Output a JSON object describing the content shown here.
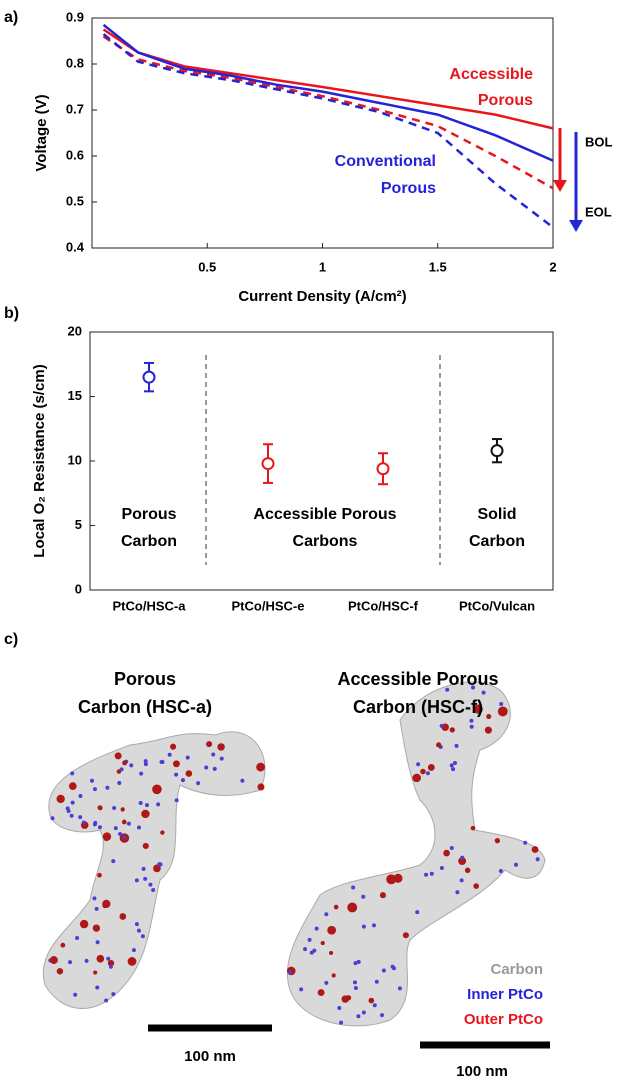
{
  "chart_data": [
    {
      "type": "line",
      "panel_label": "a)",
      "y_label": "Voltage (V)",
      "x_label": "Current Density (A/cm²)",
      "x": [
        0.05,
        0.2,
        0.4,
        0.6,
        0.8,
        1.0,
        1.25,
        1.5,
        1.75,
        2.0
      ],
      "series": [
        {
          "color": "#e8161b",
          "dash": false,
          "values": [
            0.875,
            0.825,
            0.795,
            0.78,
            0.765,
            0.75,
            0.73,
            0.71,
            0.69,
            0.66
          ]
        },
        {
          "color": "#e8161b",
          "dash": true,
          "values": [
            0.86,
            0.81,
            0.785,
            0.77,
            0.75,
            0.73,
            0.7,
            0.665,
            0.6,
            0.53
          ]
        },
        {
          "color": "#2323d8",
          "dash": false,
          "values": [
            0.885,
            0.825,
            0.79,
            0.775,
            0.755,
            0.74,
            0.715,
            0.69,
            0.645,
            0.59
          ]
        },
        {
          "color": "#2323d8",
          "dash": true,
          "values": [
            0.865,
            0.805,
            0.78,
            0.765,
            0.745,
            0.725,
            0.695,
            0.65,
            0.54,
            0.445
          ]
        }
      ],
      "xlim": [
        0,
        2
      ],
      "ylim": [
        0.4,
        0.9
      ],
      "xticks": [
        0.5,
        1,
        1.5,
        2
      ],
      "yticks": [
        0.4,
        0.5,
        0.6,
        0.7,
        0.8,
        0.9
      ],
      "annotations": {
        "accessible": [
          "Accessible",
          "Porous"
        ],
        "conventional": [
          "Conventional",
          "Porous"
        ],
        "bol": "BOL",
        "eol": "EOL"
      }
    },
    {
      "type": "errorbar",
      "panel_label": "b)",
      "y_label": "Local O₂ Resistance (s/cm)",
      "categories": [
        "PtCo/HSC-a",
        "PtCo/HSC-e",
        "PtCo/HSC-f",
        "PtCo/Vulcan"
      ],
      "values": [
        16.5,
        9.8,
        9.4,
        10.8
      ],
      "errors": [
        1.1,
        1.5,
        1.2,
        0.9
      ],
      "colors": [
        "#2323d8",
        "#e8161b",
        "#e8161b",
        "#111111"
      ],
      "ylim": [
        0,
        20
      ],
      "yticks": [
        0,
        5,
        10,
        15,
        20
      ],
      "groups": [
        [
          "Porous",
          "Carbon"
        ],
        [
          "Accessible Porous",
          "Carbons"
        ],
        [
          "Solid",
          "Carbon"
        ]
      ]
    }
  ],
  "panel_c": {
    "panel_label": "c)",
    "titles": [
      [
        "Porous",
        "Carbon (HSC-a)"
      ],
      [
        "Accessible Porous",
        "Carbon (HSC-f)"
      ]
    ],
    "legend": [
      "Carbon",
      "Inner PtCo",
      "Outer PtCo"
    ],
    "scale_bars": [
      "100 nm",
      "100 nm"
    ]
  }
}
